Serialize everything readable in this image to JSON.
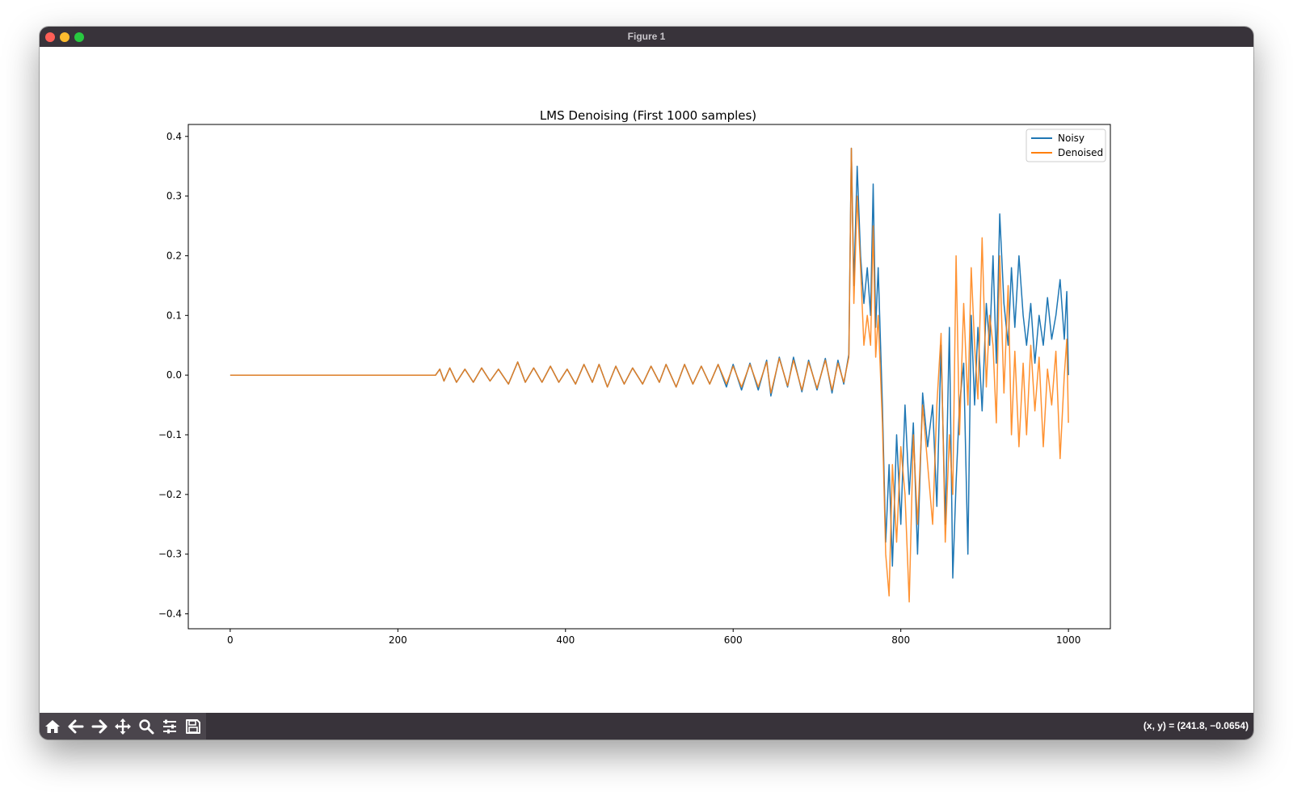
{
  "window": {
    "title": "Figure 1"
  },
  "status": {
    "coords": "(x, y) = (241.8, −0.0654)"
  },
  "toolbar": {
    "buttons": [
      {
        "icon": "home-icon",
        "tooltip": "Reset original view"
      },
      {
        "icon": "back-arrow-icon",
        "tooltip": "Back to previous view"
      },
      {
        "icon": "forward-arrow-icon",
        "tooltip": "Forward to next view"
      },
      {
        "icon": "pan-move-icon",
        "tooltip": "Pan axes"
      },
      {
        "icon": "zoom-magnifier-icon",
        "tooltip": "Zoom to rectangle"
      },
      {
        "icon": "subplots-sliders-icon",
        "tooltip": "Configure subplots"
      },
      {
        "icon": "save-floppy-icon",
        "tooltip": "Save the figure"
      }
    ]
  },
  "chart_data": {
    "type": "line",
    "title": "LMS Denoising (First 1000 samples)",
    "xlabel": "",
    "ylabel": "",
    "xlim": [
      -50,
      1050
    ],
    "ylim": [
      -0.425,
      0.42
    ],
    "xticks": [
      0,
      200,
      400,
      600,
      800,
      1000
    ],
    "yticks": [
      0.4,
      0.3,
      0.2,
      0.1,
      0.0,
      -0.1,
      -0.2,
      -0.3,
      -0.4
    ],
    "ytick_labels": [
      "0.4",
      "0.3",
      "0.2",
      "0.1",
      "0.0",
      "−0.1",
      "−0.2",
      "−0.3",
      "−0.4"
    ],
    "grid": false,
    "legend_position": "upper right",
    "series": [
      {
        "name": "Noisy",
        "color": "#1f77b4",
        "points": [
          [
            0,
            0.0
          ],
          [
            245,
            0.0
          ],
          [
            250,
            0.01
          ],
          [
            255,
            -0.01
          ],
          [
            262,
            0.012
          ],
          [
            270,
            -0.012
          ],
          [
            280,
            0.01
          ],
          [
            290,
            -0.012
          ],
          [
            300,
            0.012
          ],
          [
            310,
            -0.01
          ],
          [
            320,
            0.01
          ],
          [
            332,
            -0.015
          ],
          [
            343,
            0.022
          ],
          [
            352,
            -0.012
          ],
          [
            362,
            0.012
          ],
          [
            372,
            -0.012
          ],
          [
            382,
            0.015
          ],
          [
            392,
            -0.012
          ],
          [
            402,
            0.01
          ],
          [
            412,
            -0.015
          ],
          [
            422,
            0.018
          ],
          [
            432,
            -0.012
          ],
          [
            440,
            0.018
          ],
          [
            450,
            -0.02
          ],
          [
            460,
            0.015
          ],
          [
            470,
            -0.015
          ],
          [
            480,
            0.012
          ],
          [
            492,
            -0.015
          ],
          [
            502,
            0.015
          ],
          [
            512,
            -0.012
          ],
          [
            520,
            0.018
          ],
          [
            532,
            -0.02
          ],
          [
            542,
            0.018
          ],
          [
            552,
            -0.015
          ],
          [
            562,
            0.015
          ],
          [
            572,
            -0.015
          ],
          [
            582,
            0.018
          ],
          [
            592,
            -0.02
          ],
          [
            600,
            0.018
          ],
          [
            610,
            -0.025
          ],
          [
            620,
            0.02
          ],
          [
            630,
            -0.025
          ],
          [
            640,
            0.025
          ],
          [
            645,
            -0.035
          ],
          [
            655,
            0.03
          ],
          [
            665,
            -0.02
          ],
          [
            672,
            0.03
          ],
          [
            682,
            -0.028
          ],
          [
            690,
            0.025
          ],
          [
            700,
            -0.025
          ],
          [
            710,
            0.028
          ],
          [
            718,
            -0.03
          ],
          [
            725,
            0.025
          ],
          [
            732,
            -0.015
          ],
          [
            738,
            0.035
          ],
          [
            741,
            0.38
          ],
          [
            744,
            0.15
          ],
          [
            748,
            0.35
          ],
          [
            752,
            0.2
          ],
          [
            756,
            0.12
          ],
          [
            760,
            0.18
          ],
          [
            764,
            0.1
          ],
          [
            767,
            0.32
          ],
          [
            770,
            0.08
          ],
          [
            773,
            0.18
          ],
          [
            778,
            -0.05
          ],
          [
            782,
            -0.28
          ],
          [
            786,
            -0.15
          ],
          [
            790,
            -0.32
          ],
          [
            795,
            -0.1
          ],
          [
            800,
            -0.25
          ],
          [
            805,
            -0.05
          ],
          [
            810,
            -0.2
          ],
          [
            815,
            -0.08
          ],
          [
            820,
            -0.3
          ],
          [
            826,
            -0.03
          ],
          [
            832,
            -0.12
          ],
          [
            838,
            -0.05
          ],
          [
            843,
            -0.22
          ],
          [
            848,
            0.05
          ],
          [
            853,
            -0.25
          ],
          [
            858,
            0.08
          ],
          [
            862,
            -0.34
          ],
          [
            866,
            -0.18
          ],
          [
            870,
            -0.05
          ],
          [
            875,
            0.02
          ],
          [
            880,
            -0.3
          ],
          [
            884,
            0.1
          ],
          [
            888,
            -0.05
          ],
          [
            892,
            0.08
          ],
          [
            897,
            -0.06
          ],
          [
            902,
            0.12
          ],
          [
            906,
            0.05
          ],
          [
            910,
            0.2
          ],
          [
            914,
            0.02
          ],
          [
            918,
            0.27
          ],
          [
            923,
            0.12
          ],
          [
            928,
            0.05
          ],
          [
            932,
            0.18
          ],
          [
            936,
            0.08
          ],
          [
            941,
            0.2
          ],
          [
            946,
            0.1
          ],
          [
            950,
            0.05
          ],
          [
            955,
            0.12
          ],
          [
            960,
            0.02
          ],
          [
            965,
            0.1
          ],
          [
            970,
            0.05
          ],
          [
            975,
            0.13
          ],
          [
            980,
            0.06
          ],
          [
            985,
            0.1
          ],
          [
            990,
            0.16
          ],
          [
            995,
            0.06
          ],
          [
            998,
            0.14
          ],
          [
            1000,
            0.0
          ]
        ]
      },
      {
        "name": "Denoised",
        "color": "#ff7f0e",
        "points": [
          [
            0,
            0.0
          ],
          [
            245,
            0.0
          ],
          [
            250,
            0.01
          ],
          [
            255,
            -0.01
          ],
          [
            262,
            0.012
          ],
          [
            270,
            -0.012
          ],
          [
            280,
            0.01
          ],
          [
            290,
            -0.012
          ],
          [
            300,
            0.012
          ],
          [
            310,
            -0.01
          ],
          [
            320,
            0.01
          ],
          [
            332,
            -0.015
          ],
          [
            343,
            0.022
          ],
          [
            352,
            -0.012
          ],
          [
            362,
            0.012
          ],
          [
            372,
            -0.012
          ],
          [
            382,
            0.015
          ],
          [
            392,
            -0.012
          ],
          [
            402,
            0.01
          ],
          [
            412,
            -0.015
          ],
          [
            422,
            0.018
          ],
          [
            432,
            -0.012
          ],
          [
            440,
            0.018
          ],
          [
            450,
            -0.02
          ],
          [
            460,
            0.015
          ],
          [
            470,
            -0.015
          ],
          [
            480,
            0.012
          ],
          [
            492,
            -0.015
          ],
          [
            502,
            0.015
          ],
          [
            512,
            -0.012
          ],
          [
            520,
            0.018
          ],
          [
            532,
            -0.02
          ],
          [
            542,
            0.018
          ],
          [
            552,
            -0.015
          ],
          [
            562,
            0.015
          ],
          [
            572,
            -0.015
          ],
          [
            582,
            0.018
          ],
          [
            592,
            -0.015
          ],
          [
            600,
            0.015
          ],
          [
            610,
            -0.02
          ],
          [
            620,
            0.018
          ],
          [
            630,
            -0.02
          ],
          [
            640,
            0.022
          ],
          [
            645,
            -0.03
          ],
          [
            655,
            0.028
          ],
          [
            665,
            -0.018
          ],
          [
            672,
            0.025
          ],
          [
            682,
            -0.025
          ],
          [
            690,
            0.022
          ],
          [
            700,
            -0.022
          ],
          [
            710,
            0.025
          ],
          [
            718,
            -0.025
          ],
          [
            725,
            0.02
          ],
          [
            732,
            -0.012
          ],
          [
            738,
            0.03
          ],
          [
            741,
            0.38
          ],
          [
            744,
            0.12
          ],
          [
            748,
            0.3
          ],
          [
            752,
            0.18
          ],
          [
            756,
            0.05
          ],
          [
            760,
            0.1
          ],
          [
            764,
            0.05
          ],
          [
            767,
            0.25
          ],
          [
            770,
            0.03
          ],
          [
            773,
            0.1
          ],
          [
            778,
            -0.08
          ],
          [
            782,
            -0.3
          ],
          [
            786,
            -0.37
          ],
          [
            790,
            -0.15
          ],
          [
            795,
            -0.28
          ],
          [
            800,
            -0.12
          ],
          [
            805,
            -0.2
          ],
          [
            810,
            -0.38
          ],
          [
            815,
            -0.1
          ],
          [
            820,
            -0.25
          ],
          [
            826,
            -0.05
          ],
          [
            832,
            -0.15
          ],
          [
            838,
            -0.25
          ],
          [
            843,
            -0.05
          ],
          [
            848,
            0.07
          ],
          [
            853,
            -0.28
          ],
          [
            858,
            -0.1
          ],
          [
            862,
            -0.2
          ],
          [
            866,
            0.2
          ],
          [
            870,
            -0.1
          ],
          [
            875,
            0.12
          ],
          [
            880,
            -0.05
          ],
          [
            884,
            0.18
          ],
          [
            888,
            0.05
          ],
          [
            892,
            -0.04
          ],
          [
            897,
            0.23
          ],
          [
            902,
            -0.02
          ],
          [
            906,
            0.1
          ],
          [
            910,
            0.05
          ],
          [
            914,
            -0.08
          ],
          [
            918,
            0.2
          ],
          [
            923,
            -0.03
          ],
          [
            928,
            0.15
          ],
          [
            932,
            -0.1
          ],
          [
            936,
            0.04
          ],
          [
            941,
            -0.12
          ],
          [
            946,
            0.02
          ],
          [
            950,
            -0.1
          ],
          [
            955,
            0.05
          ],
          [
            960,
            -0.06
          ],
          [
            965,
            0.03
          ],
          [
            970,
            -0.12
          ],
          [
            975,
            0.01
          ],
          [
            980,
            -0.05
          ],
          [
            985,
            0.04
          ],
          [
            990,
            -0.14
          ],
          [
            995,
            0.0
          ],
          [
            998,
            0.06
          ],
          [
            1000,
            -0.08
          ]
        ]
      }
    ]
  }
}
